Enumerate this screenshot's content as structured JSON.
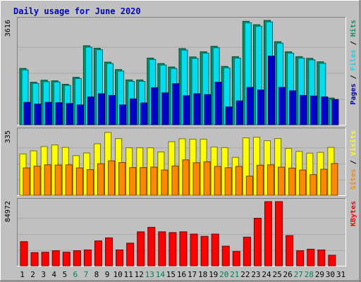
{
  "chart_data": [
    {
      "type": "bar",
      "title": "Daily usage for June 2020",
      "x": [
        1,
        2,
        3,
        4,
        5,
        6,
        7,
        8,
        9,
        10,
        11,
        12,
        13,
        14,
        15,
        16,
        17,
        18,
        19,
        20,
        21,
        22,
        23,
        24,
        25,
        26,
        27,
        28,
        29,
        30,
        31
      ],
      "weekend_days": [
        6,
        7,
        13,
        14,
        20,
        21,
        27,
        28
      ],
      "ymax_label": "3616",
      "right_labels": [
        "Pages",
        "Files",
        "Hits"
      ],
      "colors": {
        "Hits": "#009966",
        "Files": "#00ddee",
        "Pages": "#0000cc"
      },
      "series": [
        {
          "name": "Hits",
          "values": [
            1960,
            1480,
            1550,
            1530,
            1410,
            1650,
            2750,
            2660,
            2180,
            1920,
            1560,
            1560,
            2320,
            2130,
            2010,
            2650,
            2360,
            2540,
            2730,
            2030,
            2370,
            3600,
            3480,
            3630,
            2890,
            2540,
            2370,
            2310,
            2190,
            930,
            0
          ]
        },
        {
          "name": "Files",
          "values": [
            1910,
            1440,
            1500,
            1490,
            1370,
            1610,
            2700,
            2610,
            2130,
            1870,
            1510,
            1510,
            2270,
            2080,
            1960,
            2600,
            2310,
            2490,
            2680,
            1980,
            2320,
            3550,
            3430,
            3580,
            2840,
            2490,
            2320,
            2260,
            2140,
            880,
            0
          ]
        },
        {
          "name": "Pages",
          "values": [
            780,
            720,
            780,
            770,
            740,
            690,
            970,
            1080,
            1020,
            690,
            900,
            760,
            1290,
            1110,
            1430,
            1010,
            1080,
            1050,
            1480,
            620,
            830,
            1300,
            1210,
            2390,
            1300,
            1180,
            1020,
            1000,
            970,
            880,
            0
          ]
        }
      ]
    },
    {
      "type": "bar",
      "x": [
        1,
        2,
        3,
        4,
        5,
        6,
        7,
        8,
        9,
        10,
        11,
        12,
        13,
        14,
        15,
        16,
        17,
        18,
        19,
        20,
        21,
        22,
        23,
        24,
        25,
        26,
        27,
        28,
        29,
        30,
        31
      ],
      "ymax_label": "335",
      "right_labels": [
        "Sites",
        "Visits"
      ],
      "colors": {
        "Visits": "#ffff00",
        "Sites": "#ff8800"
      },
      "series": [
        {
          "name": "Visits",
          "values": [
            216,
            232,
            254,
            263,
            250,
            207,
            221,
            269,
            328,
            296,
            248,
            248,
            248,
            226,
            280,
            295,
            293,
            293,
            252,
            249,
            198,
            300,
            303,
            285,
            296,
            245,
            229,
            220,
            224,
            250,
            0
          ]
        },
        {
          "name": "Sites",
          "values": [
            143,
            152,
            159,
            158,
            159,
            143,
            134,
            165,
            180,
            171,
            145,
            145,
            147,
            132,
            153,
            185,
            170,
            175,
            151,
            144,
            151,
            100,
            157,
            159,
            147,
            142,
            132,
            108,
            136,
            166,
            0
          ]
        }
      ]
    },
    {
      "type": "bar",
      "x": [
        1,
        2,
        3,
        4,
        5,
        6,
        7,
        8,
        9,
        10,
        11,
        12,
        13,
        14,
        15,
        16,
        17,
        18,
        19,
        20,
        21,
        22,
        23,
        24,
        25,
        26,
        27,
        28,
        29,
        30,
        31
      ],
      "ymax_label": "84972",
      "right_labels": [
        "KBytes"
      ],
      "colors": {
        "KBytes": "#ff0000"
      },
      "series": [
        {
          "name": "KBytes",
          "values": [
            32000,
            17500,
            18000,
            20000,
            18000,
            20000,
            21000,
            33000,
            37000,
            21000,
            30000,
            45000,
            51000,
            45000,
            44000,
            45000,
            42000,
            39000,
            42000,
            26000,
            19000,
            38000,
            63000,
            85000,
            84972,
            40000,
            20000,
            22000,
            21000,
            14000,
            0
          ]
        }
      ]
    }
  ]
}
